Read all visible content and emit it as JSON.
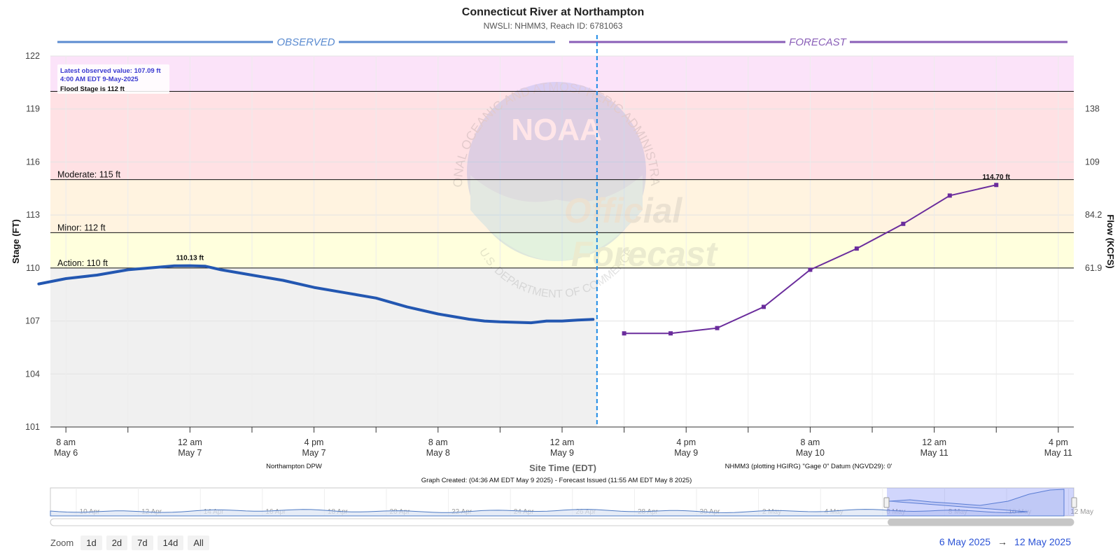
{
  "colors": {
    "observed": "#2357b1",
    "forecast": "#6a2c9c",
    "action_band": "#ffffdd",
    "minor_band": "#fff3e0",
    "moderate_band": "#ffe1e4",
    "major_band": "#fbe3f9",
    "observed_bg": "#f0f0f0",
    "observed_header": "#5b8bd0",
    "forecast_header": "#8a5fb8"
  },
  "header": {
    "title": "Connecticut River at Northampton",
    "subtitle": "NWSLI: NHMM3, Reach ID: 6781063",
    "observed_label": "OBSERVED",
    "forecast_label": "FORECAST"
  },
  "info_box": {
    "latest": "Latest observed value: 107.09 ft",
    "time": "4:00 AM EDT 9-May-2025",
    "flood": "Flood Stage is 112 ft"
  },
  "watermark": {
    "logo": "NOAA",
    "ring": "NATIONAL OCEANIC AND ATMOSPHERIC ADMINISTRATION",
    "dept": "U.S. DEPARTMENT OF COMMERCE",
    "word1": "Official",
    "word2": "Forecast"
  },
  "footer": {
    "observed_source": "Northampton DPW",
    "forecast_source": "NHMM3 (plotting HGIRG) \"Gage 0\" Datum (NGVD29): 0'",
    "created": "Graph Created: (04:36 AM EDT May 9 2025) - Forecast Issued (11:55 AM EDT May 8 2025)"
  },
  "navigator": {
    "labels": [
      "10 Apr",
      "12 Apr",
      "14 Apr",
      "16 Apr",
      "18 Apr",
      "20 Apr",
      "22 Apr",
      "24 Apr",
      "26 Apr",
      "28 Apr",
      "30 Apr",
      "2 May",
      "4 May",
      "6 May",
      "8 May",
      "10 May",
      "12 May"
    ]
  },
  "zoom": {
    "label": "Zoom",
    "buttons": [
      "1d",
      "2d",
      "7d",
      "14d",
      "All"
    ]
  },
  "range": {
    "from": "6 May 2025",
    "arrow": "→",
    "to": "12 May 2025"
  },
  "chart_data": {
    "type": "line",
    "title": "Connecticut River at Northampton",
    "subtitle": "NWSLI: NHMM3, Reach ID: 6781063",
    "xlabel": "Site Time (EDT)",
    "ylabel": "Stage (FT)",
    "y2label": "Flow (KCFS)",
    "ylim": [
      101,
      122
    ],
    "y_ticks": [
      101,
      104,
      107,
      110,
      113,
      116,
      119,
      122
    ],
    "y2_ticks": [
      {
        "stage": 110,
        "label": "61.9"
      },
      {
        "stage": 113,
        "label": "84.2"
      },
      {
        "stage": 116,
        "label": "109"
      },
      {
        "stage": 119,
        "label": "138"
      }
    ],
    "x_range_hours": [
      -2,
      130
    ],
    "x_ticks": [
      {
        "h": 0,
        "time": "8 am",
        "date": "May 6"
      },
      {
        "h": 16,
        "time": "12 am",
        "date": "May 7"
      },
      {
        "h": 32,
        "time": "4 pm",
        "date": "May 7"
      },
      {
        "h": 48,
        "time": "8 am",
        "date": "May 8"
      },
      {
        "h": 64,
        "time": "12 am",
        "date": "May 9"
      },
      {
        "h": 80,
        "time": "4 pm",
        "date": "May 9"
      },
      {
        "h": 96,
        "time": "8 am",
        "date": "May 10"
      },
      {
        "h": 112,
        "time": "12 am",
        "date": "May 11"
      },
      {
        "h": 128,
        "time": "4 pm",
        "date": "May 11"
      }
    ],
    "now_h": 68.5,
    "thresholds": [
      {
        "name": "Action",
        "value": 110,
        "label": "Action: 110 ft"
      },
      {
        "name": "Minor",
        "value": 112,
        "label": "Minor: 112 ft"
      },
      {
        "name": "Moderate",
        "value": 115,
        "label": "Moderate: 115 ft"
      },
      {
        "name": "Major",
        "value": 120,
        "label": ""
      }
    ],
    "series": [
      {
        "name": "Observed",
        "x": [
          -3.5,
          0,
          4,
          8,
          12,
          14,
          16,
          18,
          20,
          24,
          28,
          32,
          36,
          40,
          44,
          48,
          52,
          54,
          56,
          60,
          62,
          64,
          66,
          68
        ],
        "y": [
          109.1,
          109.4,
          109.6,
          109.9,
          110.05,
          110.12,
          110.13,
          110.1,
          109.9,
          109.6,
          109.3,
          108.9,
          108.6,
          108.3,
          107.8,
          107.4,
          107.1,
          107.0,
          106.95,
          106.9,
          107.0,
          107.0,
          107.05,
          107.09
        ]
      },
      {
        "name": "Forecast",
        "x": [
          72,
          78,
          84,
          90,
          96,
          102,
          108,
          114,
          120
        ],
        "y": [
          106.3,
          106.3,
          106.6,
          107.8,
          109.9,
          111.1,
          112.5,
          114.1,
          114.7
        ]
      }
    ],
    "annotations": [
      {
        "x": 16,
        "y": 110.13,
        "label": "110.13 ft"
      },
      {
        "x": 120,
        "y": 114.7,
        "label": "114.70 ft"
      }
    ]
  }
}
